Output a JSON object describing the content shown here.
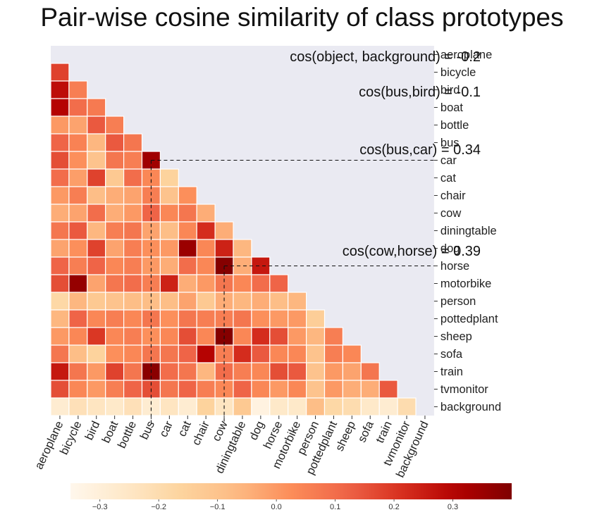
{
  "chart_data": {
    "type": "heatmap",
    "title": "Pair-wise cosine similarity of class prototypes",
    "labels": [
      "aeroplane",
      "bicycle",
      "bird",
      "boat",
      "bottle",
      "bus",
      "car",
      "cat",
      "chair",
      "cow",
      "diningtable",
      "dog",
      "horse",
      "motorbike",
      "person",
      "pottedplant",
      "sheep",
      "sofa",
      "train",
      "tvmonitor",
      "background"
    ],
    "lower_triangle_values": [
      [],
      [
        0.18
      ],
      [
        0.28,
        0.06
      ],
      [
        0.3,
        0.1,
        0.07
      ],
      [
        0.0,
        -0.02,
        0.14,
        0.06
      ],
      [
        0.12,
        0.05,
        -0.06,
        0.14,
        0.08
      ],
      [
        0.16,
        0.02,
        -0.1,
        0.08,
        0.06,
        0.34
      ],
      [
        0.1,
        -0.01,
        0.18,
        -0.12,
        0.1,
        0.04,
        -0.16
      ],
      [
        0.0,
        0.06,
        -0.08,
        -0.04,
        -0.02,
        0.06,
        -0.1,
        0.02
      ],
      [
        -0.04,
        -0.02,
        0.1,
        -0.04,
        0.0,
        0.12,
        0.04,
        0.08,
        -0.04
      ],
      [
        0.08,
        0.14,
        -0.06,
        0.06,
        0.08,
        -0.02,
        -0.08,
        0.04,
        0.22,
        -0.04
      ],
      [
        -0.02,
        0.02,
        0.18,
        -0.02,
        0.06,
        0.02,
        0.0,
        0.35,
        0.04,
        0.24,
        -0.06
      ],
      [
        0.12,
        0.06,
        0.12,
        0.04,
        0.06,
        0.0,
        -0.04,
        0.1,
        0.04,
        0.39,
        -0.04,
        0.26
      ],
      [
        0.16,
        0.36,
        -0.02,
        0.08,
        0.1,
        0.06,
        0.24,
        -0.04,
        0.0,
        0.08,
        0.04,
        0.1,
        0.12
      ],
      [
        -0.18,
        -0.06,
        -0.12,
        -0.1,
        -0.08,
        -0.08,
        -0.08,
        -0.02,
        -0.12,
        -0.04,
        -0.06,
        -0.04,
        -0.08,
        -0.06
      ],
      [
        -0.06,
        0.12,
        0.04,
        0.06,
        0.04,
        0.08,
        0.02,
        0.08,
        0.06,
        0.06,
        0.08,
        0.02,
        0.0,
        0.0,
        -0.14
      ],
      [
        0.0,
        0.04,
        0.2,
        0.04,
        0.06,
        0.02,
        0.04,
        0.16,
        0.04,
        0.39,
        0.04,
        0.22,
        0.16,
        0.0,
        -0.06,
        0.06
      ],
      [
        0.08,
        -0.08,
        -0.16,
        0.02,
        0.04,
        0.08,
        0.08,
        0.12,
        0.3,
        0.06,
        0.22,
        0.14,
        0.04,
        0.04,
        -0.1,
        0.06,
        0.04
      ],
      [
        0.26,
        0.08,
        0.0,
        0.18,
        0.08,
        0.38,
        0.1,
        0.08,
        -0.06,
        0.1,
        0.06,
        0.04,
        0.16,
        0.14,
        -0.1,
        0.0,
        -0.02,
        0.08
      ],
      [
        0.16,
        0.04,
        0.0,
        0.06,
        0.12,
        0.16,
        0.08,
        0.12,
        0.06,
        0.04,
        0.12,
        0.04,
        0.0,
        0.04,
        -0.1,
        0.0,
        -0.04,
        -0.04,
        0.14
      ],
      [
        -0.28,
        -0.22,
        -0.24,
        -0.26,
        -0.22,
        -0.28,
        -0.24,
        -0.28,
        -0.16,
        -0.24,
        -0.12,
        -0.32,
        -0.26,
        -0.26,
        -0.08,
        -0.18,
        -0.2,
        -0.26,
        -0.28,
        -0.2
      ]
    ],
    "colorbar": {
      "colormap": "OrRd",
      "range": [
        -0.35,
        0.4
      ],
      "ticks": [
        "−0.3",
        "−0.2",
        "−0.1",
        "0.0",
        "0.1",
        "0.2",
        "0.3"
      ],
      "tick_values": [
        -0.3,
        -0.2,
        -0.1,
        0.0,
        0.1,
        0.2,
        0.3
      ]
    },
    "annotations": [
      {
        "text": "cos(object, background) = -0.2"
      },
      {
        "text": "cos(bus,bird) = -0.1"
      },
      {
        "text": "cos(bus,car) = 0.34",
        "row": "car",
        "col": "bus"
      },
      {
        "text": "cos(cow,horse) = 0.39",
        "row": "horse",
        "col": "cow"
      }
    ],
    "grid": false,
    "legend": "colorbar-bottom"
  }
}
